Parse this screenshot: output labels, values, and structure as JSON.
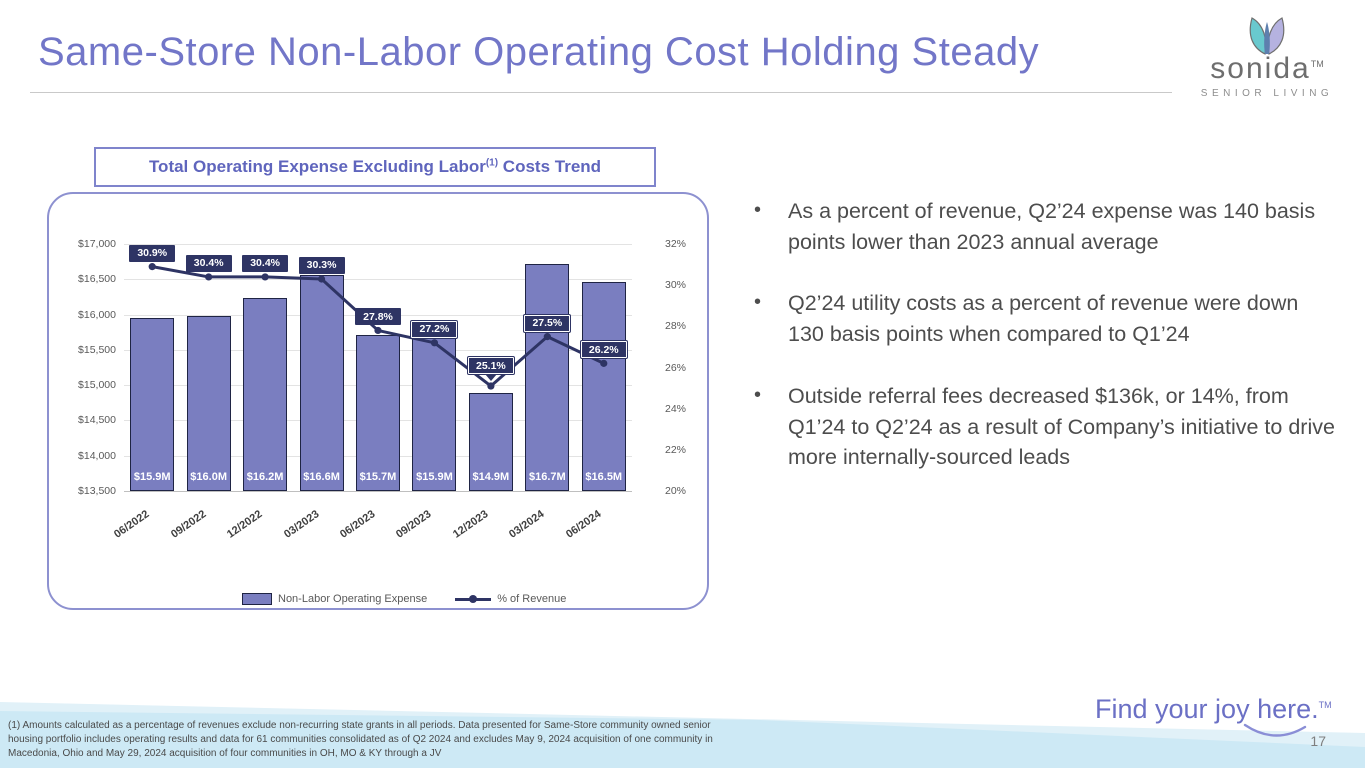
{
  "slide": {
    "title": "Same-Store Non-Labor Operating Cost Holding Steady",
    "page_number": "17",
    "tagline": {
      "text": "Find your joy here.",
      "tm": "TM"
    },
    "logo": {
      "brand": "sonida",
      "tm": "TM",
      "subtitle": "SENIOR LIVING"
    }
  },
  "chart_box_title": {
    "pre": "Total Operating Expense Excluding Labor",
    "sup": "(1)",
    "post": " Costs Trend"
  },
  "bullets": [
    "As a percent of revenue, Q2’24 expense was 140 basis points lower than 2023 annual average",
    "Q2’24 utility costs as a percent of revenue were down 130 basis points when compared to Q1’24",
    "Outside referral fees decreased $136k, or 14%, from Q1’24 to Q2’24 as a result of Company’s initiative to drive more internally-sourced leads"
  ],
  "footnote_lines": [
    "(1) Amounts calculated as a percentage of revenues exclude non-recurring state grants in all periods. Data presented for Same-Store community owned senior",
    "housing portfolio includes operating results and data for 61 communities consolidated as of Q2 2024 and excludes May 9, 2024 acquisition of one community in",
    "Macedonia, Ohio and May 29, 2024 acquisition of four communities in OH, MO & KY through a JV"
  ],
  "chart_data": {
    "type": "bar+line combo",
    "categories": [
      "06/2022",
      "09/2022",
      "12/2022",
      "03/2023",
      "06/2023",
      "09/2023",
      "12/2023",
      "03/2024",
      "06/2024"
    ],
    "series": [
      {
        "name": "Non-Labor Operating Expense",
        "type": "bar",
        "axis": "left",
        "values": [
          15945,
          15975,
          16230,
          16555,
          15710,
          15925,
          14890,
          16710,
          16455
        ],
        "labels": [
          "$15.9M",
          "$16.0M",
          "$16.2M",
          "$16.6M",
          "$15.7M",
          "$15.9M",
          "$14.9M",
          "$16.7M",
          "$16.5M"
        ]
      },
      {
        "name": "% of Revenue",
        "type": "line",
        "axis": "right",
        "values": [
          30.9,
          30.4,
          30.4,
          30.3,
          27.8,
          27.2,
          25.1,
          27.5,
          26.2
        ],
        "labels": [
          "30.9%",
          "30.4%",
          "30.4%",
          "30.3%",
          "27.8%",
          "27.2%",
          "25.1%",
          "27.5%",
          "26.2%"
        ],
        "boxed": [
          false,
          false,
          false,
          false,
          false,
          true,
          true,
          true,
          true
        ],
        "callout_index": 6
      }
    ],
    "left_axis": {
      "min": 13500,
      "max": 17000,
      "ticks": [
        "$17,000",
        "$16,500",
        "$16,000",
        "$15,500",
        "$15,000",
        "$14,500",
        "$14,000",
        "$13,500"
      ]
    },
    "right_axis": {
      "min": 20,
      "max": 32,
      "ticks": [
        "32%",
        "30%",
        "28%",
        "26%",
        "24%",
        "22%",
        "20%"
      ]
    },
    "grid": true,
    "legend_position": "bottom",
    "legend": [
      {
        "label": "Non-Labor Operating Expense",
        "marker": "bar-swatch"
      },
      {
        "label": "% of Revenue",
        "marker": "line-marker"
      }
    ],
    "colors": {
      "bar_fill": "#7a7ec0",
      "bar_border": "#1f2444",
      "line": "#2e3464",
      "label_bg": "#2e3464",
      "label_text": "#ffffff",
      "accent_purple": "#7276c8",
      "wave_blue": "#cde9f5"
    }
  }
}
